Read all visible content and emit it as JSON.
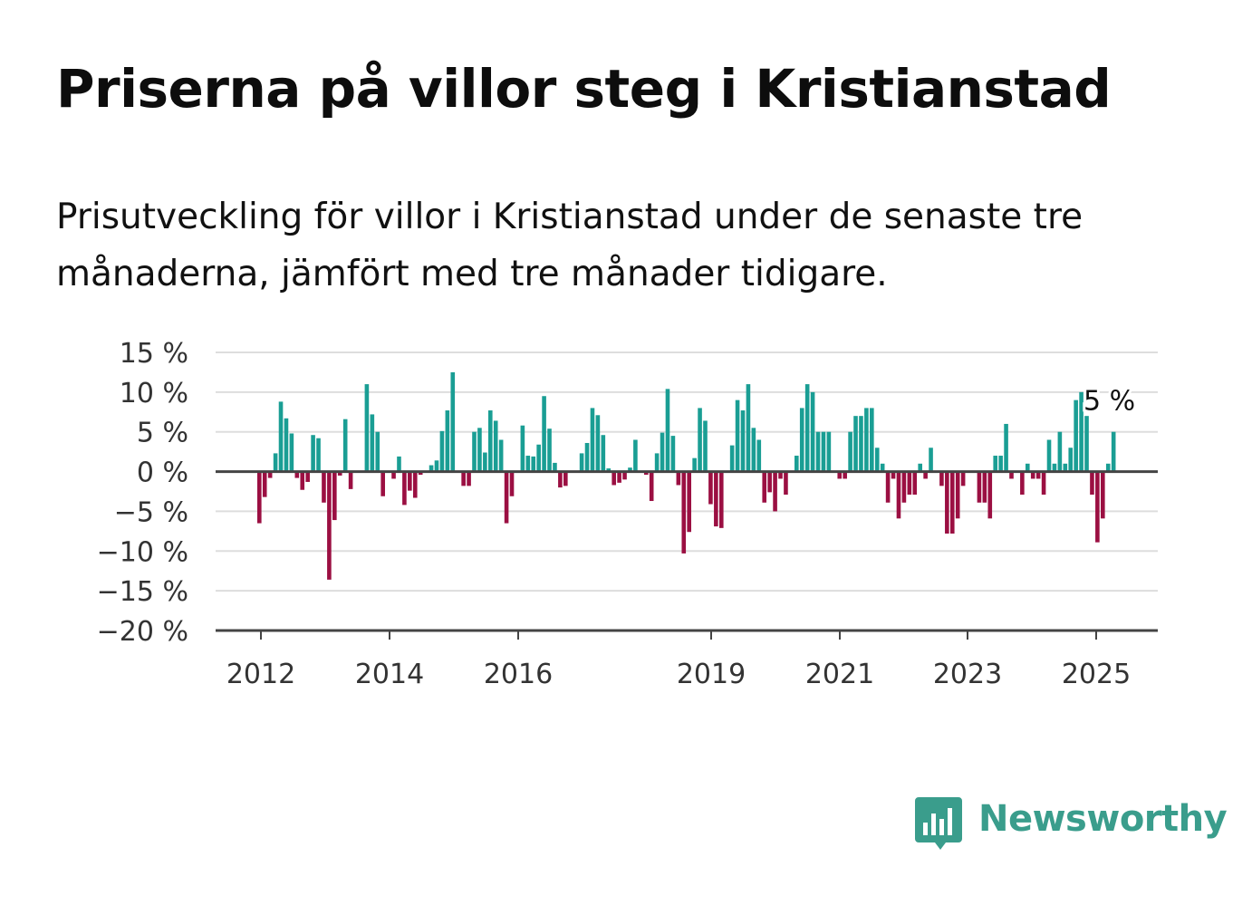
{
  "header": {
    "title": "Priserna på villor steg i Kristianstad",
    "subtitle": "Prisutveckling för villor i Kristianstad under de senaste tre månaderna, jämfört med tre månader tidigare."
  },
  "brand": {
    "name": "Newsworthy"
  },
  "colors": {
    "positive": "#1a9e94",
    "negative": "#9b0f42",
    "grid": "#dddddd",
    "axis": "#444444",
    "brand": "#3a9d8c"
  },
  "chart_data": {
    "type": "bar",
    "title": "Priserna på villor steg i Kristianstad",
    "xlabel": "",
    "ylabel": "",
    "ylim": [
      -20,
      15
    ],
    "y_ticks": [
      "15 %",
      "10 %",
      "5 %",
      "0 %",
      "−5 %",
      "−10 %",
      "−15 %",
      "−20 %"
    ],
    "x_ticks": [
      "2012",
      "2014",
      "2016",
      "2019",
      "2021",
      "2023",
      "2025"
    ],
    "grid": true,
    "last_value_label": "5 %",
    "series": [
      {
        "values": [
          -6.5,
          -3.2,
          -0.8,
          2.3,
          8.8,
          6.7,
          4.8,
          -0.8,
          -2.3,
          -1.3,
          4.6,
          4.2,
          -3.9,
          -13.6,
          -6.1,
          -0.5,
          6.6,
          -2.2,
          null,
          null,
          11.0,
          7.2,
          5.0,
          -3.1,
          null,
          -0.9,
          1.9,
          -4.2,
          -2.4,
          -3.3,
          -0.4,
          null,
          0.8,
          1.4,
          5.1,
          7.7,
          12.5,
          null,
          -1.8,
          -1.8,
          5.0,
          5.5,
          2.4,
          7.7,
          6.4,
          4.0,
          -6.5,
          -3.1,
          null,
          5.8,
          2.0,
          1.9,
          3.4,
          9.5,
          5.4,
          1.1,
          -2.0,
          -1.8,
          null,
          null,
          2.3,
          3.6,
          8.0,
          7.1,
          4.6,
          0.4,
          -1.7,
          -1.4,
          -1.0,
          0.5,
          4.0,
          null,
          -0.4,
          -3.7,
          2.3,
          4.9,
          10.4,
          4.5,
          -1.7,
          -10.3,
          -7.6,
          1.7,
          8.0,
          6.4,
          -4.1,
          -6.9,
          -7.1,
          null,
          3.3,
          9.0,
          7.7,
          11.0,
          5.5,
          4.0,
          -3.9,
          -2.6,
          -5.0,
          -0.9,
          -2.9,
          null,
          2.0,
          8.0,
          11.0,
          10.0,
          5.0,
          5.0,
          5.0,
          null,
          -0.9,
          -0.9,
          5.0,
          7.0,
          7.0,
          8.0,
          8.0,
          3.0,
          1.0,
          -3.9,
          -0.9,
          -5.9,
          -3.9,
          -2.9,
          -2.9,
          1.0,
          -0.9,
          3.0,
          null,
          -1.8,
          -7.8,
          -7.8,
          -5.9,
          -1.8,
          null,
          null,
          -3.9,
          -3.9,
          -5.9,
          2.0,
          2.0,
          6.0,
          -0.9,
          null,
          -2.9,
          1.0,
          -0.9,
          -0.9,
          -2.9,
          4.0,
          1.0,
          5.0,
          1.0,
          3.0,
          9.0,
          10.0,
          7.0,
          -2.9,
          -8.9,
          -5.9,
          1.0,
          5.0
        ]
      }
    ]
  }
}
